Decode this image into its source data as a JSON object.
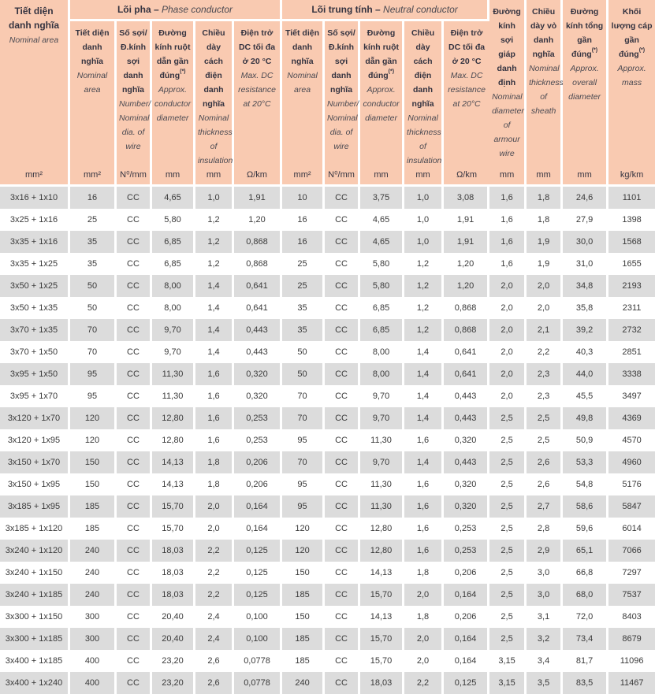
{
  "colors": {
    "header_bg": "#f9cab1",
    "row_alt": "#dcdcdc",
    "row_bg": "#ffffff",
    "header_text": "#343340",
    "data_text": "#3a3a3a"
  },
  "table": {
    "corner": {
      "vi": "Tiết diện danh nghĩa",
      "en": "Nominal area",
      "unit": "mm²"
    },
    "groups": [
      {
        "vi": "Lõi pha –",
        "en": "Phase conductor"
      },
      {
        "vi": "Lõi trung tính –",
        "en": "Neutral conductor"
      }
    ],
    "conductor_cols": [
      {
        "vi": "Tiết diện danh nghĩa",
        "en": "Nominal area",
        "unit": "mm²"
      },
      {
        "vi": "Số sợi/ Đ.kính sợi danh nghĩa",
        "en": "Number/ Nominal dia. of wire",
        "unit": "N⁰/mm"
      },
      {
        "vi": "Đường kính ruột dẫn gần đúng",
        "sup": "(*)",
        "en": "Approx. conductor diameter",
        "unit": "mm"
      },
      {
        "vi": "Chiều dày cách điện danh nghĩa",
        "en": "Nominal thickness of insulation",
        "unit": "mm"
      },
      {
        "vi": "Điện trở DC tối đa ở 20 °C",
        "en": "Max. DC resistance at 20°C",
        "unit": "Ω/km"
      }
    ],
    "right_cols": [
      {
        "vi": "Đường kính sợi giáp danh định",
        "en": "Nominal diameter of armour wire",
        "unit": "mm"
      },
      {
        "vi": "Chiều dày vỏ danh nghĩa",
        "en": "Nominal thickness of sheath",
        "unit": "mm"
      },
      {
        "vi": "Đường kính tổng gần đúng",
        "sup": "(*)",
        "en": "Approx. overall diameter",
        "unit": "mm"
      },
      {
        "vi": "Khối lượng cáp gần đúng",
        "sup": "(*)",
        "en": "Approx. mass",
        "unit": "kg/km"
      }
    ],
    "rows": [
      [
        "3x16 + 1x10",
        "16",
        "CC",
        "4,65",
        "1,0",
        "1,91",
        "10",
        "CC",
        "3,75",
        "1,0",
        "3,08",
        "1,6",
        "1,8",
        "24,6",
        "1101"
      ],
      [
        "3x25 + 1x16",
        "25",
        "CC",
        "5,80",
        "1,2",
        "1,20",
        "16",
        "CC",
        "4,65",
        "1,0",
        "1,91",
        "1,6",
        "1,8",
        "27,9",
        "1398"
      ],
      [
        "3x35 + 1x16",
        "35",
        "CC",
        "6,85",
        "1,2",
        "0,868",
        "16",
        "CC",
        "4,65",
        "1,0",
        "1,91",
        "1,6",
        "1,9",
        "30,0",
        "1568"
      ],
      [
        "3x35 + 1x25",
        "35",
        "CC",
        "6,85",
        "1,2",
        "0,868",
        "25",
        "CC",
        "5,80",
        "1,2",
        "1,20",
        "1,6",
        "1,9",
        "31,0",
        "1655"
      ],
      [
        "3x50 + 1x25",
        "50",
        "CC",
        "8,00",
        "1,4",
        "0,641",
        "25",
        "CC",
        "5,80",
        "1,2",
        "1,20",
        "2,0",
        "2,0",
        "34,8",
        "2193"
      ],
      [
        "3x50 + 1x35",
        "50",
        "CC",
        "8,00",
        "1,4",
        "0,641",
        "35",
        "CC",
        "6,85",
        "1,2",
        "0,868",
        "2,0",
        "2,0",
        "35,8",
        "2311"
      ],
      [
        "3x70 + 1x35",
        "70",
        "CC",
        "9,70",
        "1,4",
        "0,443",
        "35",
        "CC",
        "6,85",
        "1,2",
        "0,868",
        "2,0",
        "2,1",
        "39,2",
        "2732"
      ],
      [
        "3x70 + 1x50",
        "70",
        "CC",
        "9,70",
        "1,4",
        "0,443",
        "50",
        "CC",
        "8,00",
        "1,4",
        "0,641",
        "2,0",
        "2,2",
        "40,3",
        "2851"
      ],
      [
        "3x95 + 1x50",
        "95",
        "CC",
        "11,30",
        "1,6",
        "0,320",
        "50",
        "CC",
        "8,00",
        "1,4",
        "0,641",
        "2,0",
        "2,3",
        "44,0",
        "3338"
      ],
      [
        "3x95 + 1x70",
        "95",
        "CC",
        "11,30",
        "1,6",
        "0,320",
        "70",
        "CC",
        "9,70",
        "1,4",
        "0,443",
        "2,0",
        "2,3",
        "45,5",
        "3497"
      ],
      [
        "3x120 + 1x70",
        "120",
        "CC",
        "12,80",
        "1,6",
        "0,253",
        "70",
        "CC",
        "9,70",
        "1,4",
        "0,443",
        "2,5",
        "2,5",
        "49,8",
        "4369"
      ],
      [
        "3x120 + 1x95",
        "120",
        "CC",
        "12,80",
        "1,6",
        "0,253",
        "95",
        "CC",
        "11,30",
        "1,6",
        "0,320",
        "2,5",
        "2,5",
        "50,9",
        "4570"
      ],
      [
        "3x150 + 1x70",
        "150",
        "CC",
        "14,13",
        "1,8",
        "0,206",
        "70",
        "CC",
        "9,70",
        "1,4",
        "0,443",
        "2,5",
        "2,6",
        "53,3",
        "4960"
      ],
      [
        "3x150 + 1x95",
        "150",
        "CC",
        "14,13",
        "1,8",
        "0,206",
        "95",
        "CC",
        "11,30",
        "1,6",
        "0,320",
        "2,5",
        "2,6",
        "54,8",
        "5176"
      ],
      [
        "3x185 + 1x95",
        "185",
        "CC",
        "15,70",
        "2,0",
        "0,164",
        "95",
        "CC",
        "11,30",
        "1,6",
        "0,320",
        "2,5",
        "2,7",
        "58,6",
        "5847"
      ],
      [
        "3x185 + 1x120",
        "185",
        "CC",
        "15,70",
        "2,0",
        "0,164",
        "120",
        "CC",
        "12,80",
        "1,6",
        "0,253",
        "2,5",
        "2,8",
        "59,6",
        "6014"
      ],
      [
        "3x240 + 1x120",
        "240",
        "CC",
        "18,03",
        "2,2",
        "0,125",
        "120",
        "CC",
        "12,80",
        "1,6",
        "0,253",
        "2,5",
        "2,9",
        "65,1",
        "7066"
      ],
      [
        "3x240 + 1x150",
        "240",
        "CC",
        "18,03",
        "2,2",
        "0,125",
        "150",
        "CC",
        "14,13",
        "1,8",
        "0,206",
        "2,5",
        "3,0",
        "66,8",
        "7297"
      ],
      [
        "3x240 + 1x185",
        "240",
        "CC",
        "18,03",
        "2,2",
        "0,125",
        "185",
        "CC",
        "15,70",
        "2,0",
        "0,164",
        "2,5",
        "3,0",
        "68,0",
        "7537"
      ],
      [
        "3x300 + 1x150",
        "300",
        "CC",
        "20,40",
        "2,4",
        "0,100",
        "150",
        "CC",
        "14,13",
        "1,8",
        "0,206",
        "2,5",
        "3,1",
        "72,0",
        "8403"
      ],
      [
        "3x300 + 1x185",
        "300",
        "CC",
        "20,40",
        "2,4",
        "0,100",
        "185",
        "CC",
        "15,70",
        "2,0",
        "0,164",
        "2,5",
        "3,2",
        "73,4",
        "8679"
      ],
      [
        "3x400 + 1x185",
        "400",
        "CC",
        "23,20",
        "2,6",
        "0,0778",
        "185",
        "CC",
        "15,70",
        "2,0",
        "0,164",
        "3,15",
        "3,4",
        "81,7",
        "11096"
      ],
      [
        "3x400 + 1x240",
        "400",
        "CC",
        "23,20",
        "2,6",
        "0,0778",
        "240",
        "CC",
        "18,03",
        "2,2",
        "0,125",
        "3,15",
        "3,5",
        "83,5",
        "11467"
      ]
    ]
  }
}
